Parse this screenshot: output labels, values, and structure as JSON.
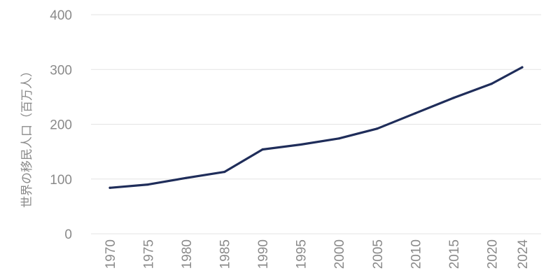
{
  "chart_data": {
    "type": "line",
    "title": "",
    "xlabel": "",
    "ylabel": "世界の移民人口（百万人）",
    "categories": [
      "1970",
      "1975",
      "1980",
      "1985",
      "1990",
      "1995",
      "2000",
      "2005",
      "2010",
      "2015",
      "2020",
      "2024"
    ],
    "series": [
      {
        "values": [
          84,
          90,
          102,
          113,
          154,
          163,
          174,
          192,
          220,
          248,
          274,
          304
        ],
        "color": "#1f2d5a"
      }
    ],
    "y_ticks": [
      0,
      100,
      200,
      300,
      400
    ],
    "ylim": [
      0,
      400
    ],
    "grid": true,
    "legend": "none",
    "colors": {
      "line": "#1f2d5a",
      "grid": "#e3e3e3",
      "tick_text": "#8a8a8a"
    }
  }
}
